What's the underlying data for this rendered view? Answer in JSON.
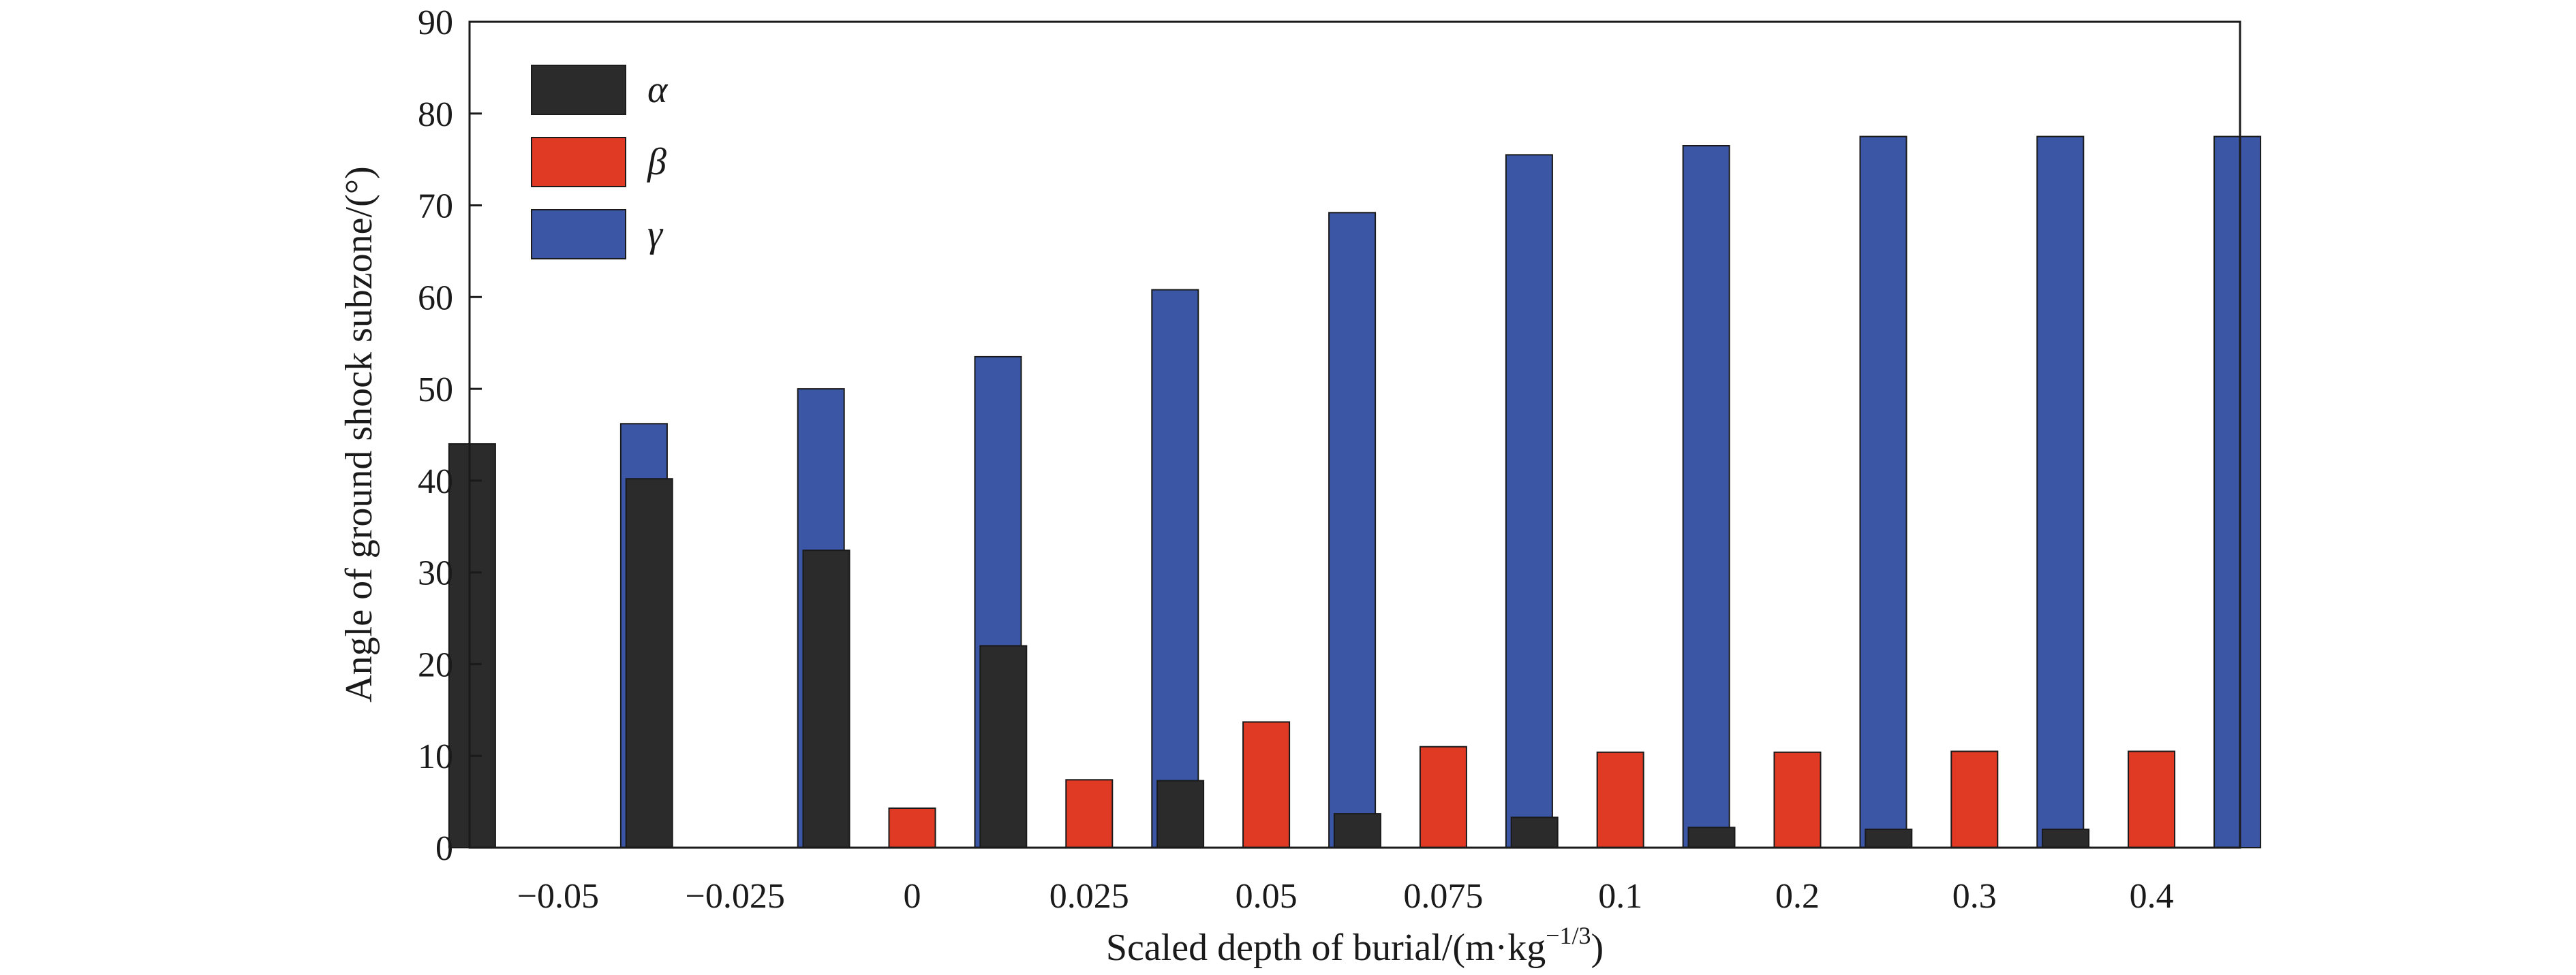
{
  "chart_data": {
    "type": "bar",
    "title": "",
    "xlabel": "Scaled depth of burial/(m·kg",
    "xlabel_sup": "−1/3",
    "xlabel_end": ")",
    "ylabel": "Angle of ground shock subzone/(°)",
    "categories": [
      "−0.05",
      "−0.025",
      "0",
      "0.025",
      "0.05",
      "0.075",
      "0.1",
      "0.2",
      "0.3",
      "0.4"
    ],
    "ylim": [
      0,
      90
    ],
    "yticks": [
      "0",
      "10",
      "20",
      "30",
      "40",
      "50",
      "60",
      "70",
      "80",
      "90"
    ],
    "grid": false,
    "legend_position": "top-left",
    "series": [
      {
        "name": "α",
        "color": "#2b2b2b",
        "values": [
          44,
          40.2,
          32.4,
          22,
          7.3,
          3.7,
          3.3,
          2.2,
          2.0,
          2.0
        ]
      },
      {
        "name": "β",
        "color": "#e03a25",
        "values": [
          0,
          0,
          4.3,
          7.4,
          13.7,
          11.0,
          10.4,
          10.4,
          10.5,
          10.5
        ]
      },
      {
        "name": "γ",
        "color": "#3a56a5",
        "values": [
          46.2,
          50.0,
          53.5,
          60.8,
          69.2,
          75.5,
          76.5,
          77.5,
          77.5,
          77.5
        ]
      }
    ]
  }
}
